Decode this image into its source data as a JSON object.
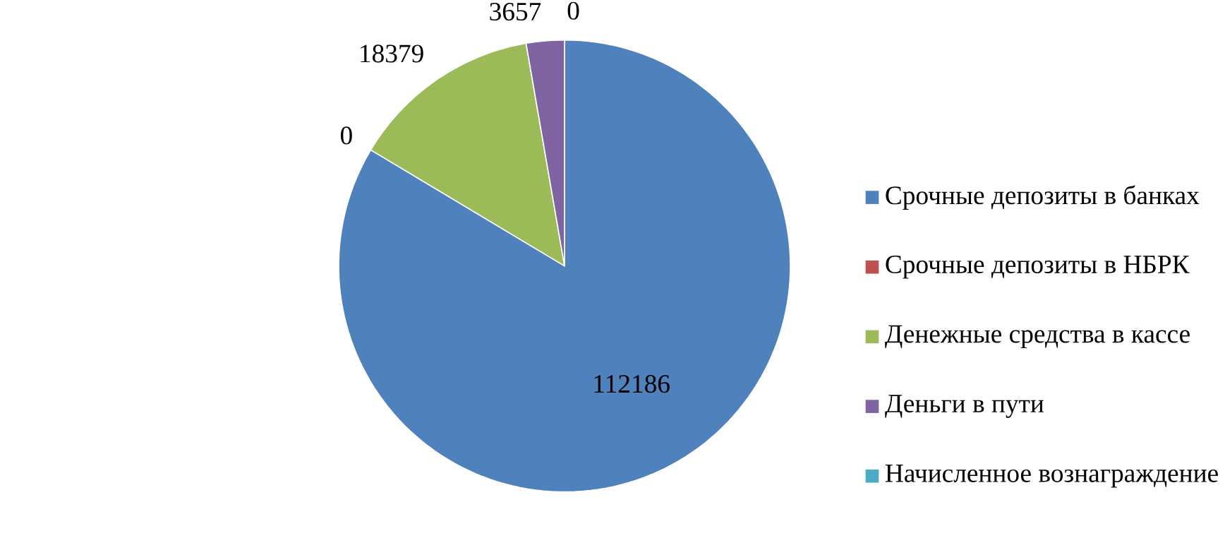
{
  "chart_data": {
    "type": "pie",
    "categories": [
      "Срочные депозиты в банках",
      "Срочные депозиты в НБРК",
      "Денежные средства в кассе",
      "Деньги в пути",
      "Начисленное вознаграждение"
    ],
    "values": [
      112186,
      0,
      18379,
      3657,
      0
    ],
    "colors": [
      "#4f81bd",
      "#c0504d",
      "#9bbb59",
      "#8064a2",
      "#4bacc6"
    ],
    "value_labels": [
      "112186",
      "0",
      "18379",
      "3657",
      "0"
    ],
    "legend": "right"
  }
}
